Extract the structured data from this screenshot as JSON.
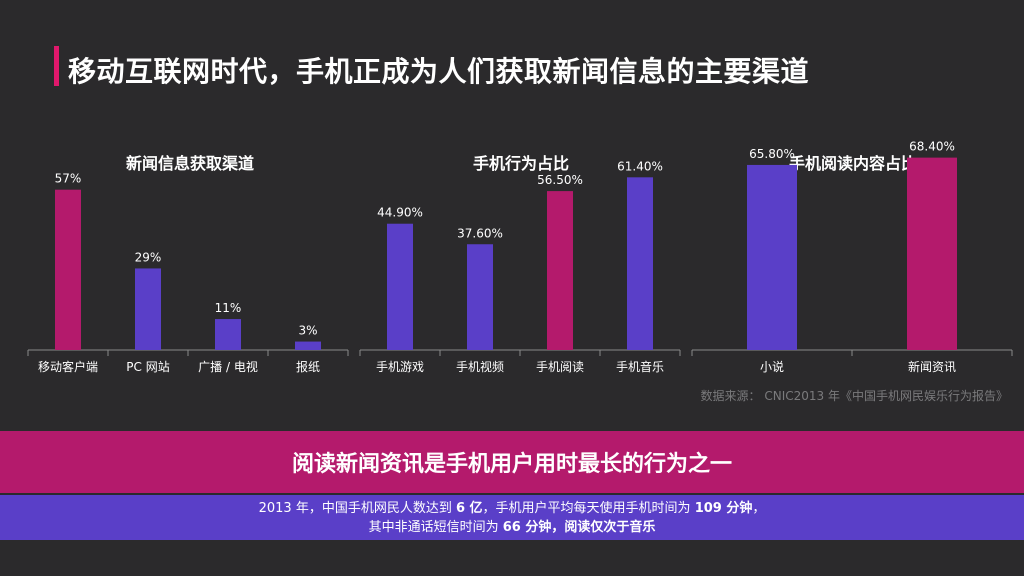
{
  "slide": {
    "title": "移动互联网时代，手机正成为人们获取新闻信息的主要渠道",
    "source": "数据来源： CNIC2013 年《中国手机网民娱乐行为报告》",
    "banner": "阅读新闻资讯是手机用户用时最长的行为之一",
    "info": {
      "line1_a": "2013 年，中国手机网民人数达到 ",
      "line1_b": "6 亿",
      "line1_c": "，手机用户平均每天使用手机时间为 ",
      "line1_d": "109 分钟",
      "line1_e": "，",
      "line2_a": "其中非通话短信时间为 ",
      "line2_b": "66 分钟",
      "line2_c": "，阅读仅次于音乐"
    }
  },
  "colors": {
    "magenta": "#b41a6c",
    "purple": "#5a3fc8",
    "accent": "#e0186c",
    "axis": "#8a8a8a"
  },
  "chart_data": [
    {
      "type": "bar",
      "title": "新闻信息获取渠道",
      "categories": [
        "移动客户端",
        "PC 网站",
        "广播 / 电视",
        "报纸"
      ],
      "values": [
        57,
        29,
        11,
        3
      ],
      "labels": [
        "57%",
        "29%",
        "11%",
        "3%"
      ],
      "colors": [
        "#b41a6c",
        "#5a3fc8",
        "#5a3fc8",
        "#5a3fc8"
      ]
    },
    {
      "type": "bar",
      "title": "手机行为占比",
      "categories": [
        "手机游戏",
        "手机视频",
        "手机阅读",
        "手机音乐"
      ],
      "values": [
        44.9,
        37.6,
        56.5,
        61.4
      ],
      "labels": [
        "44.90%",
        "37.60%",
        "56.50%",
        "61.40%"
      ],
      "colors": [
        "#5a3fc8",
        "#5a3fc8",
        "#b41a6c",
        "#5a3fc8"
      ]
    },
    {
      "type": "bar",
      "title": "手机阅读内容占比",
      "categories": [
        "小说",
        "新闻资讯"
      ],
      "values": [
        65.8,
        68.4
      ],
      "labels": [
        "65.80%",
        "68.40%"
      ],
      "colors": [
        "#5a3fc8",
        "#b41a6c"
      ]
    }
  ]
}
